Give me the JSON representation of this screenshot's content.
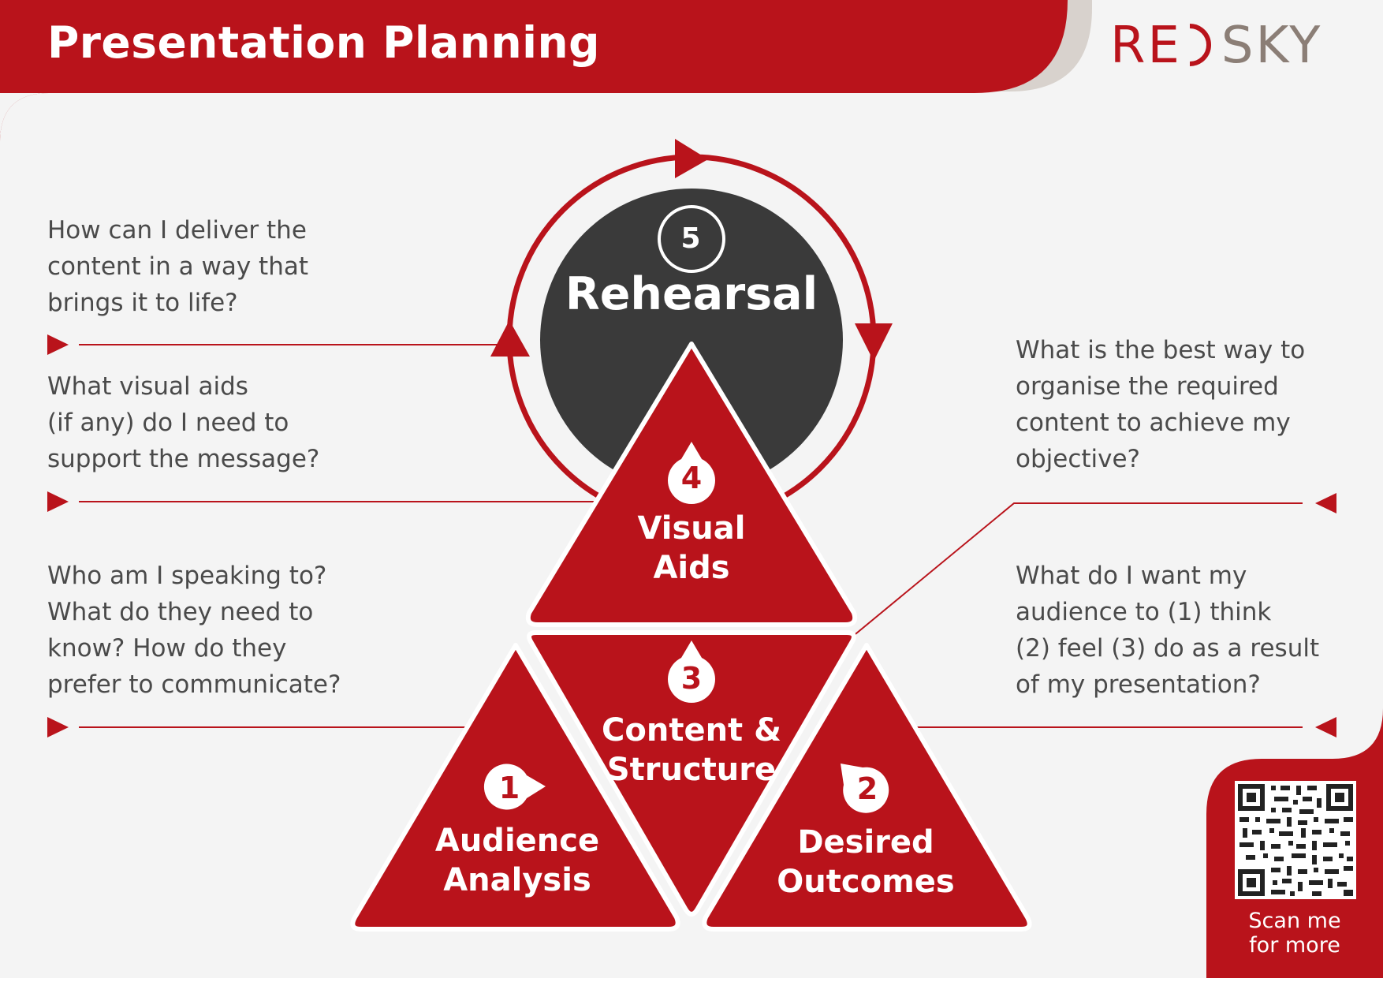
{
  "header": {
    "title": "Presentation Planning",
    "logo_left": "RE",
    "logo_right": "SKY"
  },
  "colors": {
    "brand_red": "#b9131b",
    "dark_circle": "#3a3a3a",
    "background": "#f4f4f4",
    "text_gray": "#4a4a4a",
    "logo_gray": "#8b7e76"
  },
  "steps": {
    "rehearsal": {
      "number": "5",
      "label": "Rehearsal"
    },
    "visual_aids": {
      "number": "4",
      "label": "Visual\nAids"
    },
    "content_structure": {
      "number": "3",
      "label": "Content &\nStructure"
    },
    "audience_analysis": {
      "number": "1",
      "label": "Audience\nAnalysis"
    },
    "desired_outcomes": {
      "number": "2",
      "label": "Desired\nOutcomes"
    }
  },
  "questions": {
    "rehearsal": "How can I deliver the\ncontent in a way that\nbrings it to life?",
    "visual_aids": "What visual aids\n(if any) do I need to\nsupport the message?",
    "audience_analysis": "Who am I speaking to?\nWhat do they need to\nknow? How do they\nprefer to communicate?",
    "content_structure": "What is the best way to\norganise the required\ncontent to achieve my\nobjective?",
    "desired_outcomes": "What do I want my\naudience to (1) think\n(2) feel (3) do as a result\nof my presentation?"
  },
  "qr": {
    "caption": "Scan me\nfor more"
  }
}
